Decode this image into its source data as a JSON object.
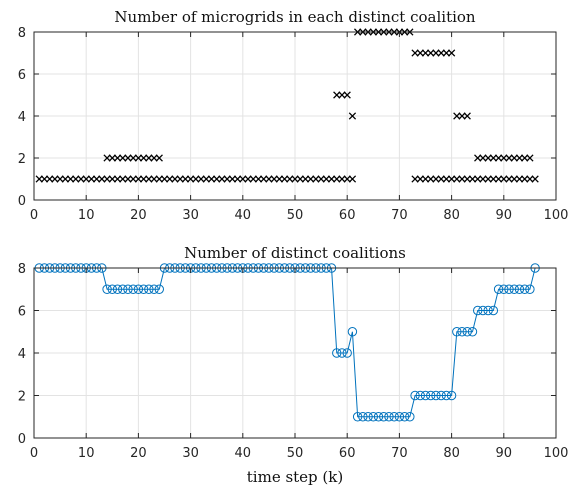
{
  "chart_data": [
    {
      "type": "scatter",
      "title": "Number of microgrids in each distinct coalition",
      "xlabel": "",
      "ylabel": "",
      "xlim": [
        0,
        100
      ],
      "ylim": [
        0,
        8
      ],
      "xticks": [
        0,
        10,
        20,
        30,
        40,
        50,
        60,
        70,
        80,
        90,
        100
      ],
      "yticks": [
        0,
        2,
        4,
        6,
        8
      ],
      "grid": true,
      "marker": "x",
      "color": "#000000",
      "groups": [
        {
          "y": 1,
          "x_from": 1,
          "x_to": 61
        },
        {
          "y": 2,
          "x_from": 14,
          "x_to": 24
        },
        {
          "y": 5,
          "x_from": 58,
          "x_to": 60
        },
        {
          "y": 4,
          "x_from": 61,
          "x_to": 61
        },
        {
          "y": 8,
          "x_from": 62,
          "x_to": 72
        },
        {
          "y": 7,
          "x_from": 73,
          "x_to": 80
        },
        {
          "y": 1,
          "x_from": 73,
          "x_to": 96
        },
        {
          "y": 4,
          "x_from": 81,
          "x_to": 83
        },
        {
          "y": 2,
          "x_from": 85,
          "x_to": 95
        }
      ]
    },
    {
      "type": "line",
      "title": "Number of distinct coalitions",
      "xlabel": "time step (k)",
      "ylabel": "",
      "xlim": [
        0,
        100
      ],
      "ylim": [
        0,
        8
      ],
      "xticks": [
        0,
        10,
        20,
        30,
        40,
        50,
        60,
        70,
        80,
        90,
        100
      ],
      "yticks": [
        0,
        2,
        4,
        6,
        8
      ],
      "grid": true,
      "marker": "o",
      "color": "#0072BD",
      "x": [
        1,
        2,
        3,
        4,
        5,
        6,
        7,
        8,
        9,
        10,
        11,
        12,
        13,
        14,
        15,
        16,
        17,
        18,
        19,
        20,
        21,
        22,
        23,
        24,
        25,
        26,
        27,
        28,
        29,
        30,
        31,
        32,
        33,
        34,
        35,
        36,
        37,
        38,
        39,
        40,
        41,
        42,
        43,
        44,
        45,
        46,
        47,
        48,
        49,
        50,
        51,
        52,
        53,
        54,
        55,
        56,
        57,
        58,
        59,
        60,
        61,
        62,
        63,
        64,
        65,
        66,
        67,
        68,
        69,
        70,
        71,
        72,
        73,
        74,
        75,
        76,
        77,
        78,
        79,
        80,
        81,
        82,
        83,
        84,
        85,
        86,
        87,
        88,
        89,
        90,
        91,
        92,
        93,
        94,
        95,
        96
      ],
      "y": [
        8,
        8,
        8,
        8,
        8,
        8,
        8,
        8,
        8,
        8,
        8,
        8,
        8,
        7,
        7,
        7,
        7,
        7,
        7,
        7,
        7,
        7,
        7,
        7,
        8,
        8,
        8,
        8,
        8,
        8,
        8,
        8,
        8,
        8,
        8,
        8,
        8,
        8,
        8,
        8,
        8,
        8,
        8,
        8,
        8,
        8,
        8,
        8,
        8,
        8,
        8,
        8,
        8,
        8,
        8,
        8,
        8,
        4,
        4,
        4,
        5,
        1,
        1,
        1,
        1,
        1,
        1,
        1,
        1,
        1,
        1,
        1,
        2,
        2,
        2,
        2,
        2,
        2,
        2,
        2,
        5,
        5,
        5,
        5,
        6,
        6,
        6,
        6,
        7,
        7,
        7,
        7,
        7,
        7,
        7,
        8
      ]
    }
  ]
}
